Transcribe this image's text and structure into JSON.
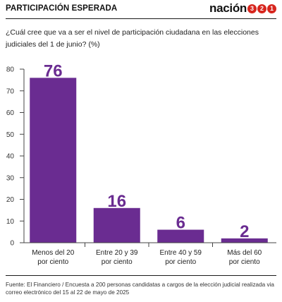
{
  "header": {
    "title": "PARTICIPACIÓN ESPERADA",
    "logo_text": "nación",
    "logo_digits": [
      "3",
      "2",
      "1"
    ]
  },
  "question": "¿Cuál cree que va a ser el nivel de participación ciudadana en las elecciones judiciales del 1 de junio?  (%)",
  "chart_data": {
    "type": "bar",
    "categories": [
      [
        "Menos del 20",
        "por ciento"
      ],
      [
        "Entre 20 y 39",
        "por ciento"
      ],
      [
        "Entre 40 y 59",
        "por ciento"
      ],
      [
        "Más del 60",
        "por ciento"
      ]
    ],
    "values": [
      76,
      16,
      6,
      2
    ],
    "data_labels": [
      "76",
      "16",
      "6",
      "2"
    ],
    "ylim": [
      0,
      80
    ],
    "yticks": [
      0,
      10,
      20,
      30,
      40,
      50,
      60,
      70,
      80
    ],
    "grid": false,
    "bar_color": "#6a2c91",
    "title": "",
    "xlabel": "",
    "ylabel": ""
  },
  "source": "Fuente: El Financiero / Encuesta a 200 personas candidatas a cargos de la elección judicial realizada via correo electrónico del 15 al 22 de mayo de 2025",
  "colors": {
    "accent": "#6a2c91",
    "logo_red": "#d7261e",
    "text": "#1a1a1a"
  }
}
